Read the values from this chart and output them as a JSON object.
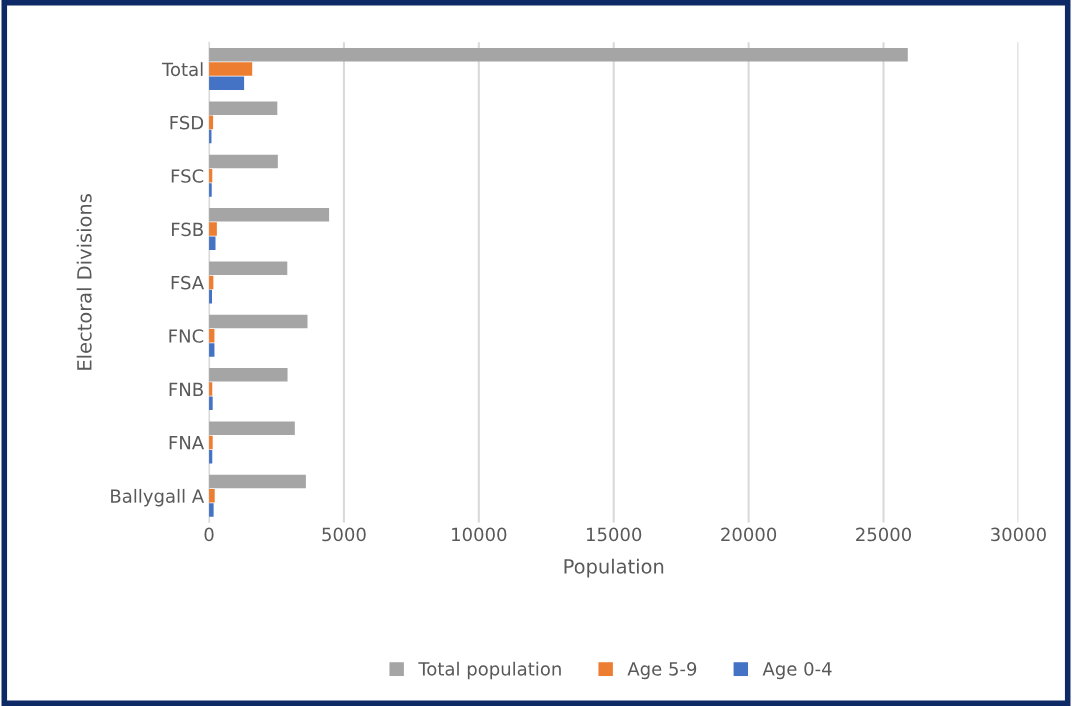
{
  "chart_data": {
    "type": "bar",
    "orientation": "horizontal",
    "xlabel": "Population",
    "ylabel": "Electoral Divisions",
    "categories": [
      "Total",
      "FSD",
      "FSC",
      "FSB",
      "FSA",
      "FNC",
      "FNB",
      "FNA",
      "Ballygall A"
    ],
    "series": [
      {
        "name": "Total population",
        "color": "#a5a5a5",
        "values": [
          25900,
          2530,
          2550,
          4450,
          2900,
          3650,
          2910,
          3180,
          3590
        ]
      },
      {
        "name": "Age 5-9",
        "color": "#ed7d31",
        "values": [
          1600,
          150,
          120,
          290,
          160,
          200,
          120,
          135,
          210
        ]
      },
      {
        "name": "Age 0-4",
        "color": "#4472c4",
        "values": [
          1300,
          90,
          100,
          240,
          110,
          200,
          135,
          120,
          170
        ]
      }
    ],
    "xlim": [
      0,
      30000
    ],
    "xticks": [
      0,
      5000,
      10000,
      15000,
      20000,
      25000,
      30000
    ],
    "grid": "x",
    "legend": "bottom"
  }
}
